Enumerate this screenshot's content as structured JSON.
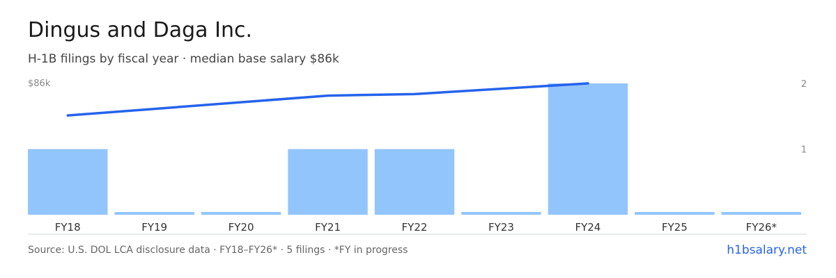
{
  "header": {
    "title": "Dingus and Daga Inc.",
    "subtitle": "H-1B filings by fiscal year · median base salary $86k"
  },
  "footer": {
    "source": "Source: U.S. DOL LCA disclosure data · FY18–FY26* · 5 filings · *FY in progress",
    "site": "h1bsalary.net"
  },
  "colors": {
    "bar": "#93c5fd",
    "line": "#2563eb",
    "axis": "#d1d5db",
    "tick_text": "#333333",
    "axis_label_text": "#888888"
  },
  "chart_data": {
    "type": "bar",
    "categories": [
      "FY18",
      "FY19",
      "FY20",
      "FY21",
      "FY22",
      "FY23",
      "FY24",
      "FY25",
      "FY26*"
    ],
    "series": [
      {
        "type": "bar",
        "axis": "right",
        "values": [
          1,
          0,
          0,
          1,
          1,
          0,
          2,
          0,
          0
        ]
      },
      {
        "type": "line",
        "axis": "left",
        "x": [
          "FY18",
          "FY21",
          "FY22",
          "FY24"
        ],
        "values": [
          65,
          78,
          79,
          86
        ]
      }
    ],
    "left_axis": {
      "label": "$86k",
      "ylim": [
        0,
        86
      ]
    },
    "right_axis": {
      "ticks": [
        "1",
        "2"
      ],
      "ylim": [
        0,
        2
      ]
    },
    "grid": false,
    "legend": "none"
  }
}
